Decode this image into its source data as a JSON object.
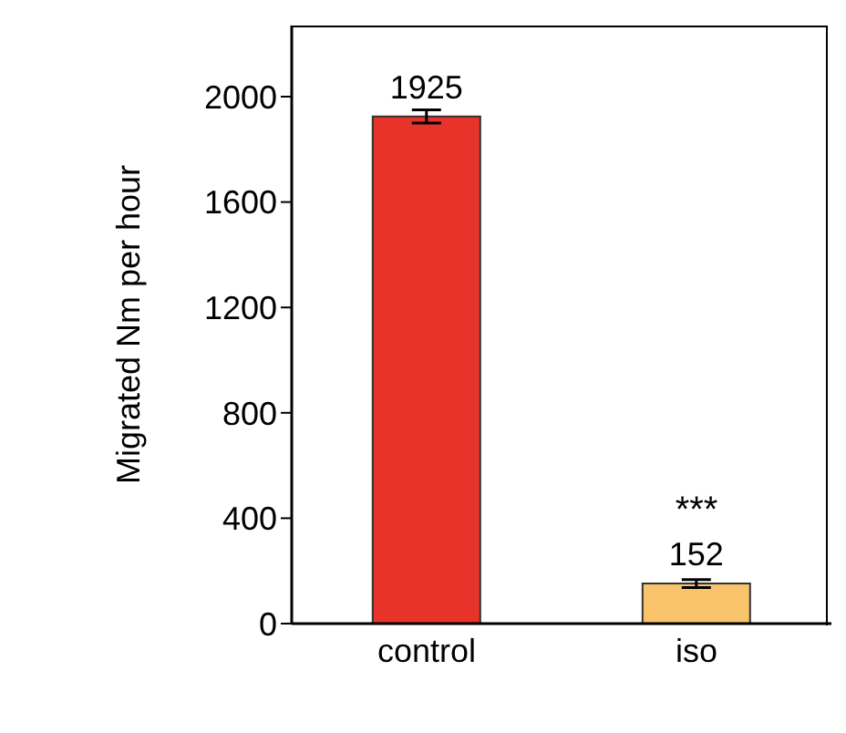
{
  "chart_data": {
    "type": "bar",
    "categories": [
      "control",
      "iso"
    ],
    "values": [
      1925,
      152
    ],
    "colors": [
      "#e8332a",
      "#f8c36b"
    ],
    "errors": [
      25,
      15
    ],
    "data_labels": true,
    "annotations": [
      {
        "text": "***",
        "x": "iso",
        "y": 152
      }
    ],
    "ylabel": "Migrated Nm per hour",
    "ylim": [
      0,
      2270
    ],
    "yticks": [
      0,
      400,
      800,
      1200,
      1600,
      2000
    ],
    "grid": false,
    "legend": false
  }
}
